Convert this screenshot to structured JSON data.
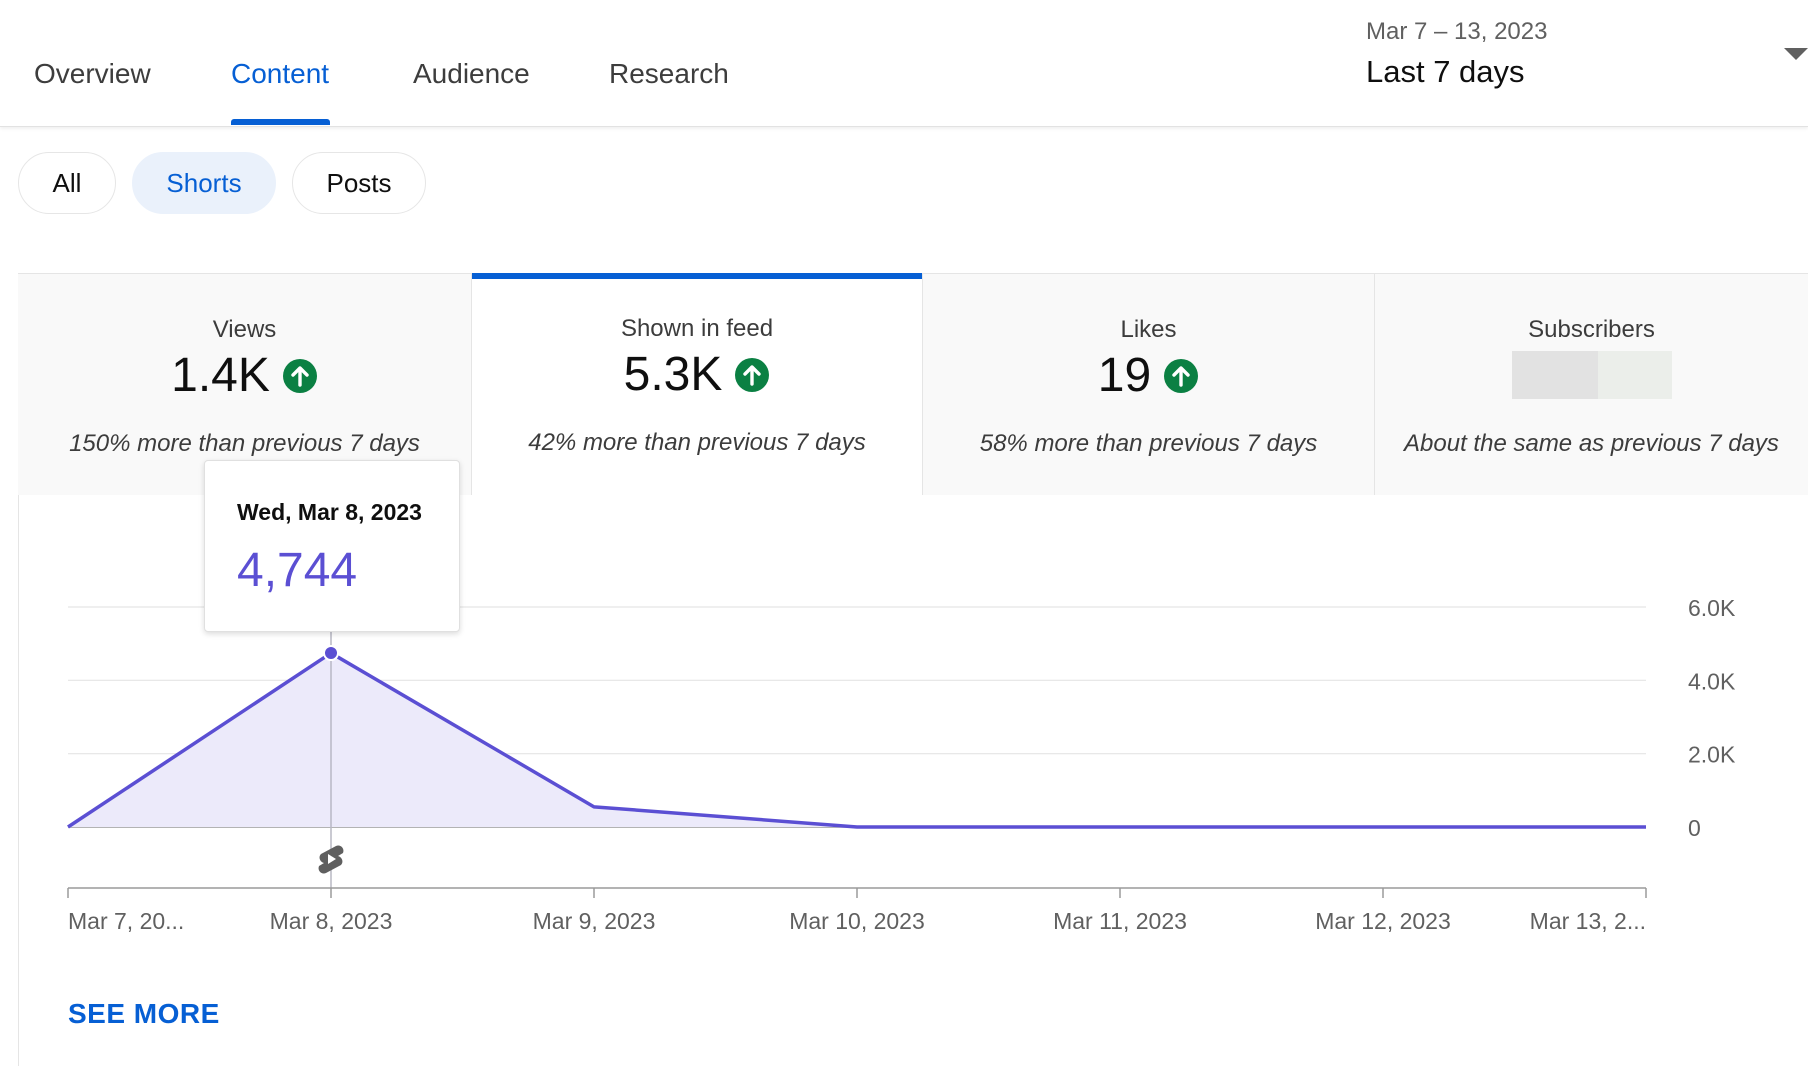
{
  "tabs": [
    {
      "label": "Overview",
      "active": false
    },
    {
      "label": "Content",
      "active": true
    },
    {
      "label": "Audience",
      "active": false
    },
    {
      "label": "Research",
      "active": false
    }
  ],
  "date_picker": {
    "range": "Mar 7 – 13, 2023",
    "period": "Last 7 days"
  },
  "filters": [
    {
      "label": "All",
      "selected": false
    },
    {
      "label": "Shorts",
      "selected": true
    },
    {
      "label": "Posts",
      "selected": false
    }
  ],
  "metrics": [
    {
      "label": "Views",
      "value": "1.4K",
      "trend": "up",
      "comparison": "150% more than previous 7 days"
    },
    {
      "label": "Shown in feed",
      "value": "5.3K",
      "trend": "up",
      "comparison": "42% more than previous 7 days",
      "active": true
    },
    {
      "label": "Likes",
      "value": "19",
      "trend": "up",
      "comparison": "58% more than previous 7 days"
    },
    {
      "label": "Subscribers",
      "value": "",
      "trend": "redacted",
      "comparison": "About the same as previous 7 days"
    }
  ],
  "colors": {
    "accent": "#065fd4",
    "line": "#5b4fd3",
    "area": "#eceafa",
    "trend_up": "#0b8043"
  },
  "chart_data": {
    "type": "area",
    "x": [
      "Mar 7, 20...",
      "Mar 8, 2023",
      "Mar 9, 2023",
      "Mar 10, 2023",
      "Mar 11, 2023",
      "Mar 12, 2023",
      "Mar 13, 2..."
    ],
    "series": [
      {
        "values": [
          0,
          4744,
          550,
          0,
          0,
          0,
          0
        ]
      }
    ],
    "yticks": [
      "6.0K",
      "4.0K",
      "2.0K",
      "0"
    ],
    "ylim": [
      0,
      6000
    ],
    "grid": true,
    "y_axis_side": "right",
    "highlighted_index": 1,
    "marker_icon": "shorts-icon"
  },
  "tooltip": {
    "date": "Wed, Mar 8, 2023",
    "value": "4,744"
  },
  "see_more_label": "SEE MORE"
}
